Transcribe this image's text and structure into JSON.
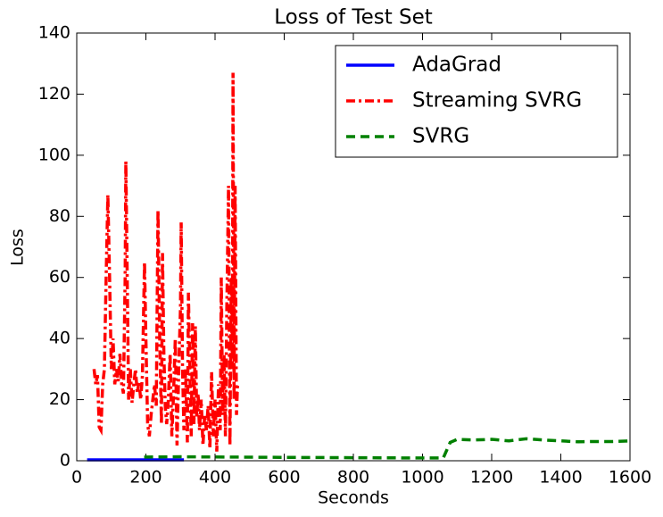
{
  "chart_data": {
    "type": "line",
    "title": "Loss of Test Set",
    "x_label": "Seconds",
    "y_label": "Loss",
    "xlim": [
      0,
      1600
    ],
    "xticks": [
      0,
      200,
      400,
      600,
      800,
      1000,
      1200,
      1400,
      1600
    ],
    "ylim": [
      0,
      140
    ],
    "yticks": [
      0,
      20,
      40,
      60,
      80,
      100,
      120,
      140
    ],
    "legend": "upper right",
    "series": [
      {
        "name": "AdaGrad",
        "color": "#0000ff",
        "style": "solid",
        "x": [
          30,
          310
        ],
        "values": [
          0.3,
          0.3
        ]
      },
      {
        "name": "Streaming SVRG",
        "color": "#ff0000",
        "style": "dashdot",
        "x": [
          50,
          55,
          60,
          65,
          70,
          75,
          80,
          85,
          90,
          95,
          100,
          105,
          110,
          115,
          120,
          125,
          130,
          135,
          140,
          142,
          145,
          150,
          155,
          160,
          165,
          170,
          175,
          180,
          185,
          190,
          196,
          200,
          205,
          210,
          215,
          220,
          225,
          230,
          235,
          240,
          245,
          248,
          252,
          256,
          260,
          265,
          270,
          275,
          280,
          285,
          290,
          295,
          300,
          302,
          306,
          310,
          315,
          320,
          323,
          327,
          331,
          335,
          339,
          343,
          347,
          351,
          355,
          360,
          365,
          370,
          375,
          380,
          385,
          390,
          395,
          400,
          405,
          410,
          415,
          418,
          422,
          426,
          430,
          434,
          439,
          443,
          447,
          450,
          452,
          455,
          458,
          462,
          465
        ],
        "values": [
          30,
          25,
          28,
          11,
          10,
          25,
          30,
          60,
          87,
          60,
          30,
          40,
          25,
          30,
          26,
          35,
          25,
          22,
          60,
          98,
          70,
          20,
          30,
          19,
          25,
          30,
          22,
          26,
          20,
          28,
          65,
          40,
          12,
          8,
          15,
          20,
          25,
          18,
          82,
          40,
          12,
          68,
          35,
          18,
          12,
          20,
          35,
          8,
          22,
          40,
          5,
          30,
          50,
          78,
          30,
          10,
          30,
          6,
          55,
          30,
          8,
          45,
          12,
          44,
          14,
          22,
          10,
          20,
          5,
          15,
          10,
          18,
          4,
          29,
          8,
          20,
          3,
          25,
          10,
          60,
          15,
          35,
          8,
          50,
          90,
          5,
          60,
          30,
          127,
          20,
          90,
          15,
          25
        ]
      },
      {
        "name": "SVRG",
        "color": "#008000",
        "style": "dashed",
        "x": [
          195,
          300,
          600,
          1000,
          1050,
          1060,
          1080,
          1100,
          1150,
          1200,
          1250,
          1300,
          1350,
          1400,
          1450,
          1500,
          1550,
          1600
        ],
        "values": [
          1.2,
          1.3,
          1.1,
          0.9,
          0.9,
          0.9,
          6,
          7,
          6.8,
          7,
          6.5,
          7.2,
          6.8,
          6.5,
          6.2,
          6.3,
          6.3,
          6.5
        ]
      }
    ]
  }
}
